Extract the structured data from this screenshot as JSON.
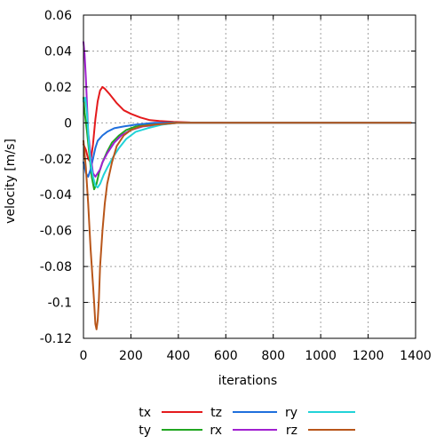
{
  "chart_data": {
    "type": "line",
    "xlabel": "iterations",
    "ylabel": "velocity [m/s]",
    "xlim": [
      0,
      1400
    ],
    "ylim": [
      -0.12,
      0.06
    ],
    "x_ticks": [
      0,
      200,
      400,
      600,
      800,
      1000,
      1200,
      1400
    ],
    "y_ticks": [
      -0.12,
      -0.1,
      -0.08,
      -0.06,
      -0.04,
      -0.02,
      0,
      0.02,
      0.04,
      0.06
    ],
    "grid": true,
    "legend_position": "bottom",
    "series": [
      {
        "name": "tx",
        "color": "#e41a1c",
        "points": [
          [
            0,
            -0.012
          ],
          [
            10,
            -0.015
          ],
          [
            20,
            -0.02
          ],
          [
            30,
            -0.022
          ],
          [
            40,
            -0.012
          ],
          [
            50,
            0.002
          ],
          [
            60,
            0.012
          ],
          [
            70,
            0.018
          ],
          [
            80,
            0.02
          ],
          [
            90,
            0.019
          ],
          [
            110,
            0.016
          ],
          [
            140,
            0.011
          ],
          [
            170,
            0.007
          ],
          [
            200,
            0.005
          ],
          [
            240,
            0.003
          ],
          [
            280,
            0.0015
          ],
          [
            320,
            0.001
          ],
          [
            380,
            0.0005
          ],
          [
            450,
            0.0002
          ],
          [
            600,
            0.0
          ],
          [
            1000,
            0.0
          ],
          [
            1380,
            0.0
          ]
        ]
      },
      {
        "name": "ty",
        "color": "#21a621",
        "points": [
          [
            0,
            0.014
          ],
          [
            5,
            0.006
          ],
          [
            15,
            -0.005
          ],
          [
            25,
            -0.018
          ],
          [
            35,
            -0.03
          ],
          [
            45,
            -0.037
          ],
          [
            55,
            -0.034
          ],
          [
            65,
            -0.028
          ],
          [
            80,
            -0.022
          ],
          [
            100,
            -0.016
          ],
          [
            120,
            -0.011
          ],
          [
            150,
            -0.007
          ],
          [
            180,
            -0.004
          ],
          [
            220,
            -0.002
          ],
          [
            280,
            -0.001
          ],
          [
            350,
            0.0
          ],
          [
            500,
            0.0
          ],
          [
            1000,
            0.0
          ],
          [
            1380,
            0.0
          ]
        ]
      },
      {
        "name": "tz",
        "color": "#1f6fdc",
        "points": [
          [
            0,
            -0.022
          ],
          [
            10,
            -0.028
          ],
          [
            20,
            -0.03
          ],
          [
            30,
            -0.026
          ],
          [
            40,
            -0.02
          ],
          [
            50,
            -0.014
          ],
          [
            60,
            -0.01
          ],
          [
            80,
            -0.007
          ],
          [
            100,
            -0.005
          ],
          [
            130,
            -0.003
          ],
          [
            170,
            -0.002
          ],
          [
            220,
            -0.001
          ],
          [
            300,
            0.0
          ],
          [
            500,
            0.0
          ],
          [
            1000,
            0.0
          ],
          [
            1380,
            0.0
          ]
        ]
      },
      {
        "name": "rx",
        "color": "#a020d0",
        "points": [
          [
            0,
            0.045
          ],
          [
            5,
            0.038
          ],
          [
            10,
            0.025
          ],
          [
            15,
            0.01
          ],
          [
            20,
            -0.005
          ],
          [
            30,
            -0.018
          ],
          [
            40,
            -0.028
          ],
          [
            50,
            -0.03
          ],
          [
            60,
            -0.028
          ],
          [
            70,
            -0.026
          ],
          [
            80,
            -0.022
          ],
          [
            100,
            -0.017
          ],
          [
            130,
            -0.011
          ],
          [
            160,
            -0.007
          ],
          [
            200,
            -0.004
          ],
          [
            250,
            -0.002
          ],
          [
            320,
            -0.001
          ],
          [
            400,
            0.0
          ],
          [
            600,
            0.0
          ],
          [
            1000,
            0.0
          ],
          [
            1380,
            0.0
          ]
        ]
      },
      {
        "name": "ry",
        "color": "#22d3d8",
        "points": [
          [
            0,
            0.012
          ],
          [
            8,
            0.014
          ],
          [
            15,
            0.005
          ],
          [
            22,
            -0.01
          ],
          [
            30,
            -0.022
          ],
          [
            40,
            -0.03
          ],
          [
            50,
            -0.035
          ],
          [
            60,
            -0.036
          ],
          [
            70,
            -0.034
          ],
          [
            85,
            -0.029
          ],
          [
            100,
            -0.025
          ],
          [
            125,
            -0.019
          ],
          [
            150,
            -0.014
          ],
          [
            180,
            -0.009
          ],
          [
            220,
            -0.005
          ],
          [
            270,
            -0.003
          ],
          [
            330,
            -0.001
          ],
          [
            400,
            0.0
          ],
          [
            600,
            0.0
          ],
          [
            1000,
            0.0
          ],
          [
            1380,
            0.0
          ]
        ]
      },
      {
        "name": "rz",
        "color": "#b8561a",
        "points": [
          [
            0,
            -0.01
          ],
          [
            10,
            -0.025
          ],
          [
            20,
            -0.045
          ],
          [
            30,
            -0.07
          ],
          [
            40,
            -0.09
          ],
          [
            45,
            -0.1
          ],
          [
            50,
            -0.112
          ],
          [
            55,
            -0.115
          ],
          [
            60,
            -0.11
          ],
          [
            65,
            -0.098
          ],
          [
            70,
            -0.08
          ],
          [
            80,
            -0.06
          ],
          [
            90,
            -0.045
          ],
          [
            100,
            -0.034
          ],
          [
            120,
            -0.022
          ],
          [
            140,
            -0.013
          ],
          [
            170,
            -0.007
          ],
          [
            200,
            -0.004
          ],
          [
            240,
            -0.002
          ],
          [
            300,
            -0.001
          ],
          [
            400,
            0.0
          ],
          [
            600,
            0.0
          ],
          [
            1000,
            0.0
          ],
          [
            1380,
            0.0
          ]
        ]
      }
    ]
  }
}
